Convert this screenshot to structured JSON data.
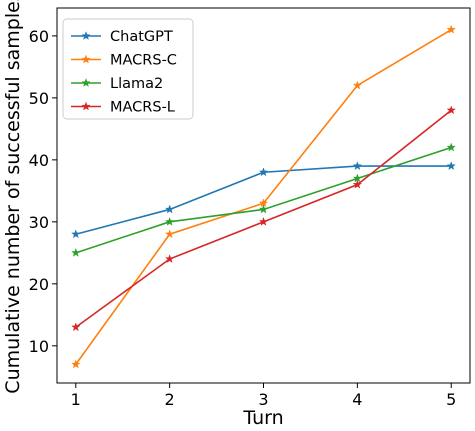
{
  "chart_data": {
    "type": "line",
    "title": "",
    "xlabel": "Turn",
    "ylabel": "Cumulative number of successful samples",
    "x": [
      1,
      2,
      3,
      4,
      5
    ],
    "x_ticks": [
      "1",
      "2",
      "3",
      "4",
      "5"
    ],
    "y_ticks": [
      "10",
      "20",
      "30",
      "40",
      "50",
      "60"
    ],
    "xlim": [
      0.8,
      5.2
    ],
    "ylim": [
      4,
      64.5
    ],
    "grid": false,
    "legend_position": "top-left",
    "marker": "star",
    "series": [
      {
        "name": "ChatGPT",
        "color": "#1f77b4",
        "values": [
          28,
          32,
          38,
          39,
          39
        ]
      },
      {
        "name": "MACRS-C",
        "color": "#ff7f0e",
        "values": [
          7,
          28,
          33,
          52,
          61
        ]
      },
      {
        "name": "Llama2",
        "color": "#2ca02c",
        "values": [
          25,
          30,
          32,
          37,
          42
        ]
      },
      {
        "name": "MACRS-L",
        "color": "#d62728",
        "values": [
          13,
          24,
          30,
          36,
          48
        ]
      }
    ]
  }
}
